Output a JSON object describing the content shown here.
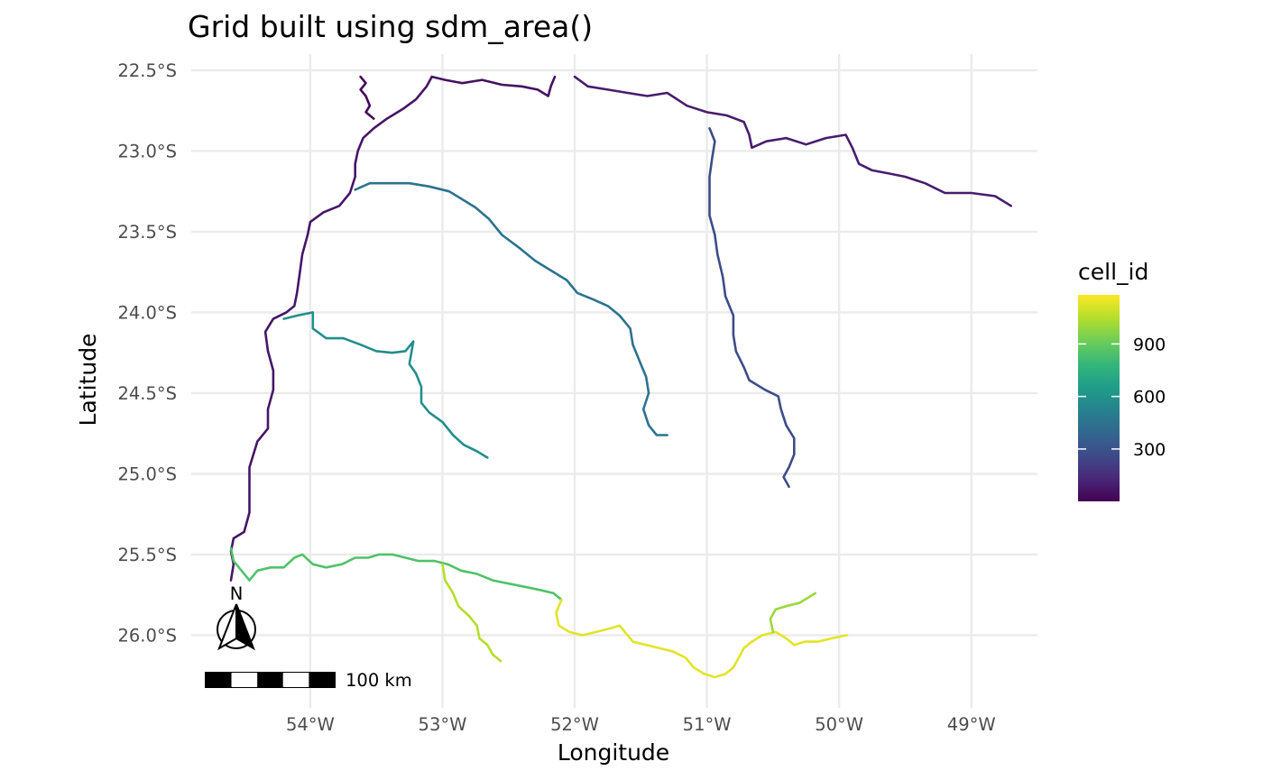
{
  "chart_data": {
    "type": "map",
    "title": "Grid built using sdm_area()",
    "xlabel": "Longitude",
    "ylabel": "Latitude",
    "xlim": [
      -54.9,
      -48.5
    ],
    "ylim": [
      -26.45,
      -22.4
    ],
    "x_ticks": [
      {
        "value": -54,
        "label": "54°W"
      },
      {
        "value": -53,
        "label": "53°W"
      },
      {
        "value": -52,
        "label": "52°W"
      },
      {
        "value": -51,
        "label": "51°W"
      },
      {
        "value": -50,
        "label": "50°W"
      },
      {
        "value": -49,
        "label": "49°W"
      }
    ],
    "y_ticks": [
      {
        "value": -22.5,
        "label": "22.5°S"
      },
      {
        "value": -23.0,
        "label": "23.0°S"
      },
      {
        "value": -23.5,
        "label": "23.5°S"
      },
      {
        "value": -24.0,
        "label": "24.0°S"
      },
      {
        "value": -24.5,
        "label": "24.5°S"
      },
      {
        "value": -25.0,
        "label": "25.0°S"
      },
      {
        "value": -25.5,
        "label": "25.5°S"
      },
      {
        "value": -26.0,
        "label": "26.0°S"
      }
    ],
    "grid": true,
    "legend": {
      "title": "cell_id",
      "placement": "right",
      "min": 1,
      "max": 1180,
      "ticks": [
        300,
        600,
        900
      ],
      "tick_labels": [
        "300",
        "600",
        "900"
      ],
      "colors": [
        "#440154",
        "#482878",
        "#3e4a89",
        "#31688e",
        "#26828e",
        "#1f9e89",
        "#35b779",
        "#6ece58",
        "#b5de2b",
        "#fde725"
      ]
    },
    "rivers": [
      {
        "cell_id": 20,
        "points": [
          [
            -53.62,
            -22.54
          ],
          [
            -53.58,
            -22.58
          ],
          [
            -53.62,
            -22.62
          ],
          [
            -53.58,
            -22.66
          ],
          [
            -53.55,
            -22.72
          ],
          [
            -53.58,
            -22.76
          ],
          [
            -53.52,
            -22.8
          ]
        ]
      },
      {
        "cell_id": 70,
        "points": [
          [
            -53.08,
            -22.54
          ],
          [
            -53.12,
            -22.6
          ],
          [
            -53.2,
            -22.68
          ],
          [
            -53.3,
            -22.74
          ],
          [
            -53.42,
            -22.8
          ],
          [
            -53.52,
            -22.86
          ],
          [
            -53.6,
            -22.92
          ],
          [
            -53.64,
            -23.0
          ],
          [
            -53.66,
            -23.08
          ],
          [
            -53.66,
            -23.16
          ],
          [
            -53.7,
            -23.26
          ],
          [
            -53.78,
            -23.34
          ],
          [
            -53.9,
            -23.38
          ],
          [
            -54.0,
            -23.44
          ],
          [
            -54.02,
            -23.52
          ],
          [
            -54.06,
            -23.64
          ],
          [
            -54.08,
            -23.76
          ],
          [
            -54.1,
            -23.88
          ],
          [
            -54.12,
            -23.96
          ],
          [
            -54.18,
            -24.0
          ],
          [
            -54.28,
            -24.04
          ],
          [
            -54.34,
            -24.12
          ],
          [
            -54.32,
            -24.24
          ],
          [
            -54.28,
            -24.36
          ],
          [
            -54.28,
            -24.48
          ],
          [
            -54.32,
            -24.6
          ],
          [
            -54.32,
            -24.72
          ],
          [
            -54.4,
            -24.8
          ],
          [
            -54.46,
            -24.96
          ],
          [
            -54.46,
            -25.12
          ],
          [
            -54.46,
            -25.24
          ],
          [
            -54.5,
            -25.36
          ],
          [
            -54.58,
            -25.4
          ],
          [
            -54.6,
            -25.48
          ],
          [
            -54.58,
            -25.56
          ],
          [
            -54.6,
            -25.66
          ]
        ]
      },
      {
        "cell_id": 55,
        "points": [
          [
            -53.08,
            -22.54
          ],
          [
            -52.98,
            -22.56
          ],
          [
            -52.85,
            -22.58
          ],
          [
            -52.7,
            -22.56
          ],
          [
            -52.55,
            -22.59
          ],
          [
            -52.4,
            -22.6
          ],
          [
            -52.28,
            -22.62
          ],
          [
            -52.2,
            -22.66
          ],
          [
            -52.18,
            -22.6
          ],
          [
            -52.15,
            -22.54
          ]
        ]
      },
      {
        "cell_id": 95,
        "points": [
          [
            -52.0,
            -22.54
          ],
          [
            -51.9,
            -22.6
          ],
          [
            -51.75,
            -22.62
          ],
          [
            -51.6,
            -22.64
          ],
          [
            -51.45,
            -22.66
          ],
          [
            -51.3,
            -22.64
          ],
          [
            -51.15,
            -22.72
          ],
          [
            -51.0,
            -22.76
          ],
          [
            -50.85,
            -22.78
          ],
          [
            -50.72,
            -22.82
          ],
          [
            -50.68,
            -22.9
          ],
          [
            -50.66,
            -22.98
          ],
          [
            -50.55,
            -22.94
          ],
          [
            -50.4,
            -22.92
          ],
          [
            -50.25,
            -22.96
          ],
          [
            -50.1,
            -22.92
          ],
          [
            -49.95,
            -22.9
          ],
          [
            -49.9,
            -22.98
          ],
          [
            -49.85,
            -23.08
          ],
          [
            -49.75,
            -23.12
          ],
          [
            -49.62,
            -23.14
          ],
          [
            -49.5,
            -23.16
          ],
          [
            -49.35,
            -23.2
          ],
          [
            -49.2,
            -23.26
          ],
          [
            -49.0,
            -23.26
          ],
          [
            -48.82,
            -23.28
          ],
          [
            -48.7,
            -23.34
          ]
        ]
      },
      {
        "cell_id": 270,
        "points": [
          [
            -50.98,
            -22.86
          ],
          [
            -50.94,
            -22.94
          ],
          [
            -50.96,
            -23.04
          ],
          [
            -50.98,
            -23.16
          ],
          [
            -50.98,
            -23.28
          ],
          [
            -50.98,
            -23.4
          ],
          [
            -50.94,
            -23.52
          ],
          [
            -50.92,
            -23.64
          ],
          [
            -50.88,
            -23.78
          ],
          [
            -50.86,
            -23.9
          ],
          [
            -50.8,
            -24.02
          ],
          [
            -50.8,
            -24.14
          ],
          [
            -50.78,
            -24.24
          ],
          [
            -50.72,
            -24.34
          ],
          [
            -50.68,
            -24.42
          ],
          [
            -50.56,
            -24.48
          ],
          [
            -50.46,
            -24.52
          ],
          [
            -50.44,
            -24.6
          ],
          [
            -50.4,
            -24.7
          ],
          [
            -50.34,
            -24.78
          ],
          [
            -50.34,
            -24.88
          ],
          [
            -50.38,
            -24.96
          ],
          [
            -50.42,
            -25.02
          ],
          [
            -50.38,
            -25.08
          ]
        ]
      },
      {
        "cell_id": 450,
        "points": [
          [
            -53.66,
            -23.24
          ],
          [
            -53.55,
            -23.2
          ],
          [
            -53.4,
            -23.2
          ],
          [
            -53.25,
            -23.2
          ],
          [
            -53.1,
            -23.22
          ],
          [
            -52.95,
            -23.25
          ],
          [
            -52.85,
            -23.3
          ],
          [
            -52.75,
            -23.35
          ],
          [
            -52.65,
            -23.42
          ],
          [
            -52.55,
            -23.52
          ],
          [
            -52.42,
            -23.6
          ],
          [
            -52.3,
            -23.68
          ],
          [
            -52.18,
            -23.74
          ],
          [
            -52.06,
            -23.8
          ],
          [
            -51.98,
            -23.88
          ],
          [
            -51.86,
            -23.92
          ],
          [
            -51.75,
            -23.96
          ],
          [
            -51.66,
            -24.02
          ],
          [
            -51.58,
            -24.1
          ],
          [
            -51.56,
            -24.2
          ],
          [
            -51.5,
            -24.32
          ],
          [
            -51.46,
            -24.4
          ],
          [
            -51.44,
            -24.5
          ],
          [
            -51.48,
            -24.6
          ],
          [
            -51.44,
            -24.7
          ],
          [
            -51.38,
            -24.76
          ],
          [
            -51.3,
            -24.76
          ]
        ]
      },
      {
        "cell_id": 580,
        "points": [
          [
            -54.2,
            -24.04
          ],
          [
            -54.1,
            -24.02
          ],
          [
            -53.98,
            -24.0
          ],
          [
            -53.98,
            -24.1
          ],
          [
            -53.88,
            -24.16
          ],
          [
            -53.75,
            -24.16
          ],
          [
            -53.62,
            -24.2
          ],
          [
            -53.5,
            -24.24
          ],
          [
            -53.38,
            -24.25
          ],
          [
            -53.28,
            -24.24
          ],
          [
            -53.22,
            -24.18
          ],
          [
            -53.25,
            -24.32
          ],
          [
            -53.2,
            -24.38
          ],
          [
            -53.16,
            -24.46
          ],
          [
            -53.16,
            -24.56
          ],
          [
            -53.1,
            -24.62
          ],
          [
            -53.0,
            -24.68
          ],
          [
            -52.92,
            -24.76
          ],
          [
            -52.84,
            -24.82
          ],
          [
            -52.74,
            -24.86
          ],
          [
            -52.66,
            -24.9
          ]
        ]
      },
      {
        "cell_id": 850,
        "points": [
          [
            -54.6,
            -25.46
          ],
          [
            -54.58,
            -25.54
          ],
          [
            -54.52,
            -25.6
          ],
          [
            -54.46,
            -25.66
          ],
          [
            -54.4,
            -25.6
          ],
          [
            -54.3,
            -25.58
          ],
          [
            -54.2,
            -25.58
          ],
          [
            -54.12,
            -25.52
          ],
          [
            -54.06,
            -25.5
          ],
          [
            -53.98,
            -25.56
          ],
          [
            -53.88,
            -25.58
          ],
          [
            -53.76,
            -25.56
          ],
          [
            -53.66,
            -25.52
          ],
          [
            -53.56,
            -25.52
          ],
          [
            -53.48,
            -25.5
          ],
          [
            -53.38,
            -25.5
          ],
          [
            -53.28,
            -25.52
          ],
          [
            -53.18,
            -25.54
          ],
          [
            -53.06,
            -25.54
          ],
          [
            -52.96,
            -25.56
          ],
          [
            -52.86,
            -25.6
          ],
          [
            -52.74,
            -25.62
          ],
          [
            -52.62,
            -25.66
          ],
          [
            -52.5,
            -25.68
          ],
          [
            -52.38,
            -25.7
          ],
          [
            -52.26,
            -25.72
          ],
          [
            -52.16,
            -25.74
          ],
          [
            -52.1,
            -25.78
          ]
        ]
      },
      {
        "cell_id": 1050,
        "points": [
          [
            -53.0,
            -25.56
          ],
          [
            -52.98,
            -25.66
          ],
          [
            -52.92,
            -25.74
          ],
          [
            -52.88,
            -25.82
          ],
          [
            -52.8,
            -25.88
          ],
          [
            -52.74,
            -25.94
          ],
          [
            -52.72,
            -26.02
          ],
          [
            -52.66,
            -26.06
          ],
          [
            -52.62,
            -26.12
          ],
          [
            -52.56,
            -26.16
          ]
        ]
      },
      {
        "cell_id": 1130,
        "points": [
          [
            -52.1,
            -25.78
          ],
          [
            -52.14,
            -25.86
          ],
          [
            -52.12,
            -25.94
          ],
          [
            -52.04,
            -25.98
          ],
          [
            -51.94,
            -26.0
          ],
          [
            -51.84,
            -25.98
          ],
          [
            -51.74,
            -25.96
          ],
          [
            -51.66,
            -25.94
          ],
          [
            -51.62,
            -25.98
          ],
          [
            -51.56,
            -26.04
          ],
          [
            -51.46,
            -26.06
          ],
          [
            -51.36,
            -26.08
          ],
          [
            -51.26,
            -26.1
          ],
          [
            -51.16,
            -26.14
          ],
          [
            -51.1,
            -26.2
          ],
          [
            -51.02,
            -26.24
          ],
          [
            -50.94,
            -26.26
          ],
          [
            -50.86,
            -26.24
          ],
          [
            -50.8,
            -26.2
          ],
          [
            -50.76,
            -26.14
          ],
          [
            -50.72,
            -26.08
          ],
          [
            -50.66,
            -26.04
          ],
          [
            -50.58,
            -26.0
          ],
          [
            -50.48,
            -25.98
          ],
          [
            -50.4,
            -26.02
          ],
          [
            -50.34,
            -26.06
          ],
          [
            -50.26,
            -26.04
          ],
          [
            -50.16,
            -26.04
          ],
          [
            -50.06,
            -26.02
          ],
          [
            -49.94,
            -26.0
          ]
        ]
      },
      {
        "cell_id": 1000,
        "points": [
          [
            -50.5,
            -25.98
          ],
          [
            -50.52,
            -25.9
          ],
          [
            -50.48,
            -25.84
          ],
          [
            -50.4,
            -25.82
          ],
          [
            -50.3,
            -25.8
          ],
          [
            -50.22,
            -25.76
          ],
          [
            -50.18,
            -25.74
          ]
        ]
      }
    ],
    "scale_bar": {
      "label": "100 km",
      "segments": 5
    },
    "north_arrow": {
      "label": "N"
    }
  }
}
